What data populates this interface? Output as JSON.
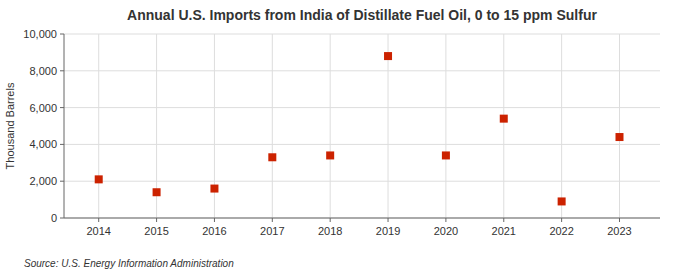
{
  "chart_data": {
    "type": "scatter",
    "title": "Annual U.S. Imports from India of Distillate Fuel Oil, 0 to 15 ppm Sulfur",
    "ylabel": "Thousand Barrels",
    "source": "Source: U.S. Energy Information Administration",
    "x": [
      2014,
      2015,
      2016,
      2017,
      2018,
      2019,
      2020,
      2021,
      2022,
      2023
    ],
    "values": [
      2100,
      1400,
      1600,
      3300,
      3400,
      8800,
      3400,
      5400,
      900,
      4400
    ],
    "xlim": [
      2013.4,
      2023.7
    ],
    "xticks": [
      2014,
      2015,
      2016,
      2017,
      2018,
      2019,
      2020,
      2021,
      2022,
      2023
    ],
    "ylim": [
      0,
      10000
    ],
    "yticks": [
      0,
      {
        "value": 2000,
        "label": "2,000"
      },
      {
        "value": 4000,
        "label": "4,000"
      },
      {
        "value": 6000,
        "label": "6,000"
      },
      {
        "value": 8000,
        "label": "8,000"
      },
      {
        "value": 10000,
        "label": "10,000"
      }
    ],
    "color": "#cc2200",
    "marker": "square",
    "grid": true
  }
}
